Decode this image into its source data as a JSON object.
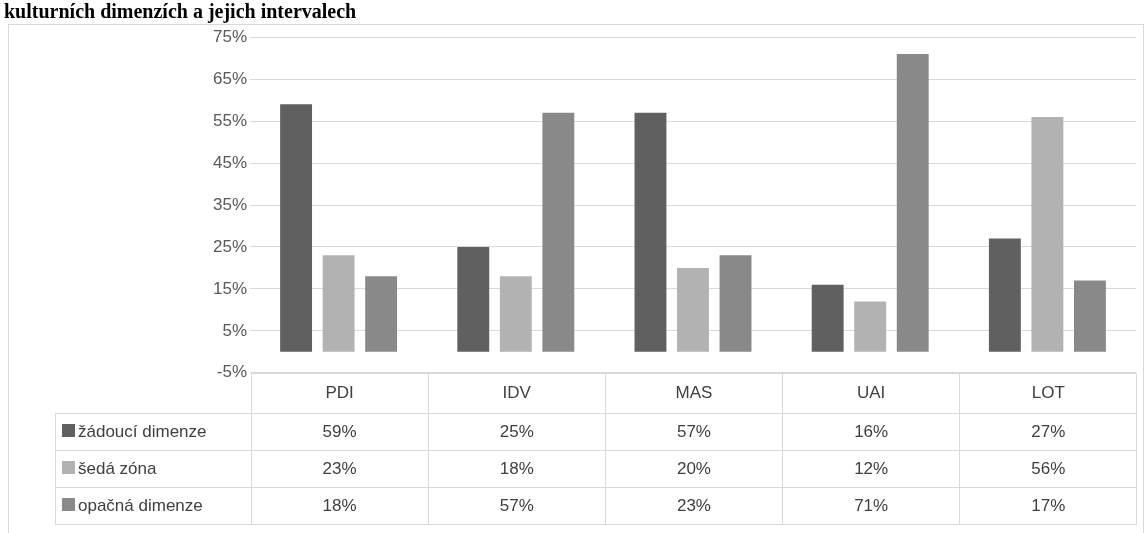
{
  "chart_data": {
    "type": "bar",
    "title": "kulturních dimenzích a jejich intervalech",
    "categories": [
      "PDI",
      "IDV",
      "MAS",
      "UAI",
      "LOT"
    ],
    "series": [
      {
        "name": "žádoucí dimenze",
        "color": "#606060",
        "values": [
          59,
          25,
          57,
          16,
          27
        ],
        "value_labels": [
          "59%",
          "25%",
          "57%",
          "16%",
          "27%"
        ]
      },
      {
        "name": "šedá zóna",
        "color": "#b2b2b2",
        "values": [
          23,
          18,
          20,
          12,
          56
        ],
        "value_labels": [
          "23%",
          "18%",
          "20%",
          "12%",
          "56%"
        ]
      },
      {
        "name": "opačná dimenze",
        "color": "#898989",
        "values": [
          18,
          57,
          23,
          71,
          17
        ],
        "value_labels": [
          "18%",
          "57%",
          "23%",
          "71%",
          "17%"
        ]
      }
    ],
    "ylim": [
      -5,
      75
    ],
    "yticks": [
      {
        "value": -5,
        "label": "-5%"
      },
      {
        "value": 5,
        "label": "5%"
      },
      {
        "value": 15,
        "label": "15%"
      },
      {
        "value": 25,
        "label": "25%"
      },
      {
        "value": 35,
        "label": "35%"
      },
      {
        "value": 45,
        "label": "45%"
      },
      {
        "value": 55,
        "label": "55%"
      },
      {
        "value": 65,
        "label": "65%"
      },
      {
        "value": 75,
        "label": "75%"
      }
    ],
    "grid": "y",
    "legend": "bottom left"
  }
}
